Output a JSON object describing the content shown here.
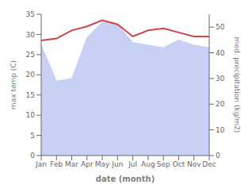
{
  "chart_data": {
    "type": "line",
    "xlabel": "date (month)",
    "ylabel": "max temp (C)",
    "y2label": "med. precipitation (kg/m2)",
    "categories": [
      "Jan",
      "Feb",
      "Mar",
      "Apr",
      "May",
      "Jun",
      "Jul",
      "Aug",
      "Sep",
      "Oct",
      "Nov",
      "Dec"
    ],
    "series": [
      {
        "type": "area",
        "axis": "y2",
        "color": "#c8d0f5",
        "values": [
          43,
          29,
          30,
          46,
          52,
          51,
          44,
          43,
          42,
          45,
          43,
          42
        ]
      },
      {
        "type": "line",
        "color": "#cc4444",
        "values": [
          28.5,
          29.0,
          31.0,
          32.0,
          33.5,
          32.5,
          29.5,
          31.0,
          31.5,
          30.5,
          29.5,
          29.5
        ]
      }
    ],
    "ylim": [
      0,
      35
    ],
    "yticks": [
      0,
      5,
      10,
      15,
      20,
      25,
      30,
      35
    ],
    "y2lim": [
      0,
      55
    ],
    "y2ticks": [
      0,
      10,
      20,
      30,
      40,
      50
    ],
    "grid": false
  }
}
